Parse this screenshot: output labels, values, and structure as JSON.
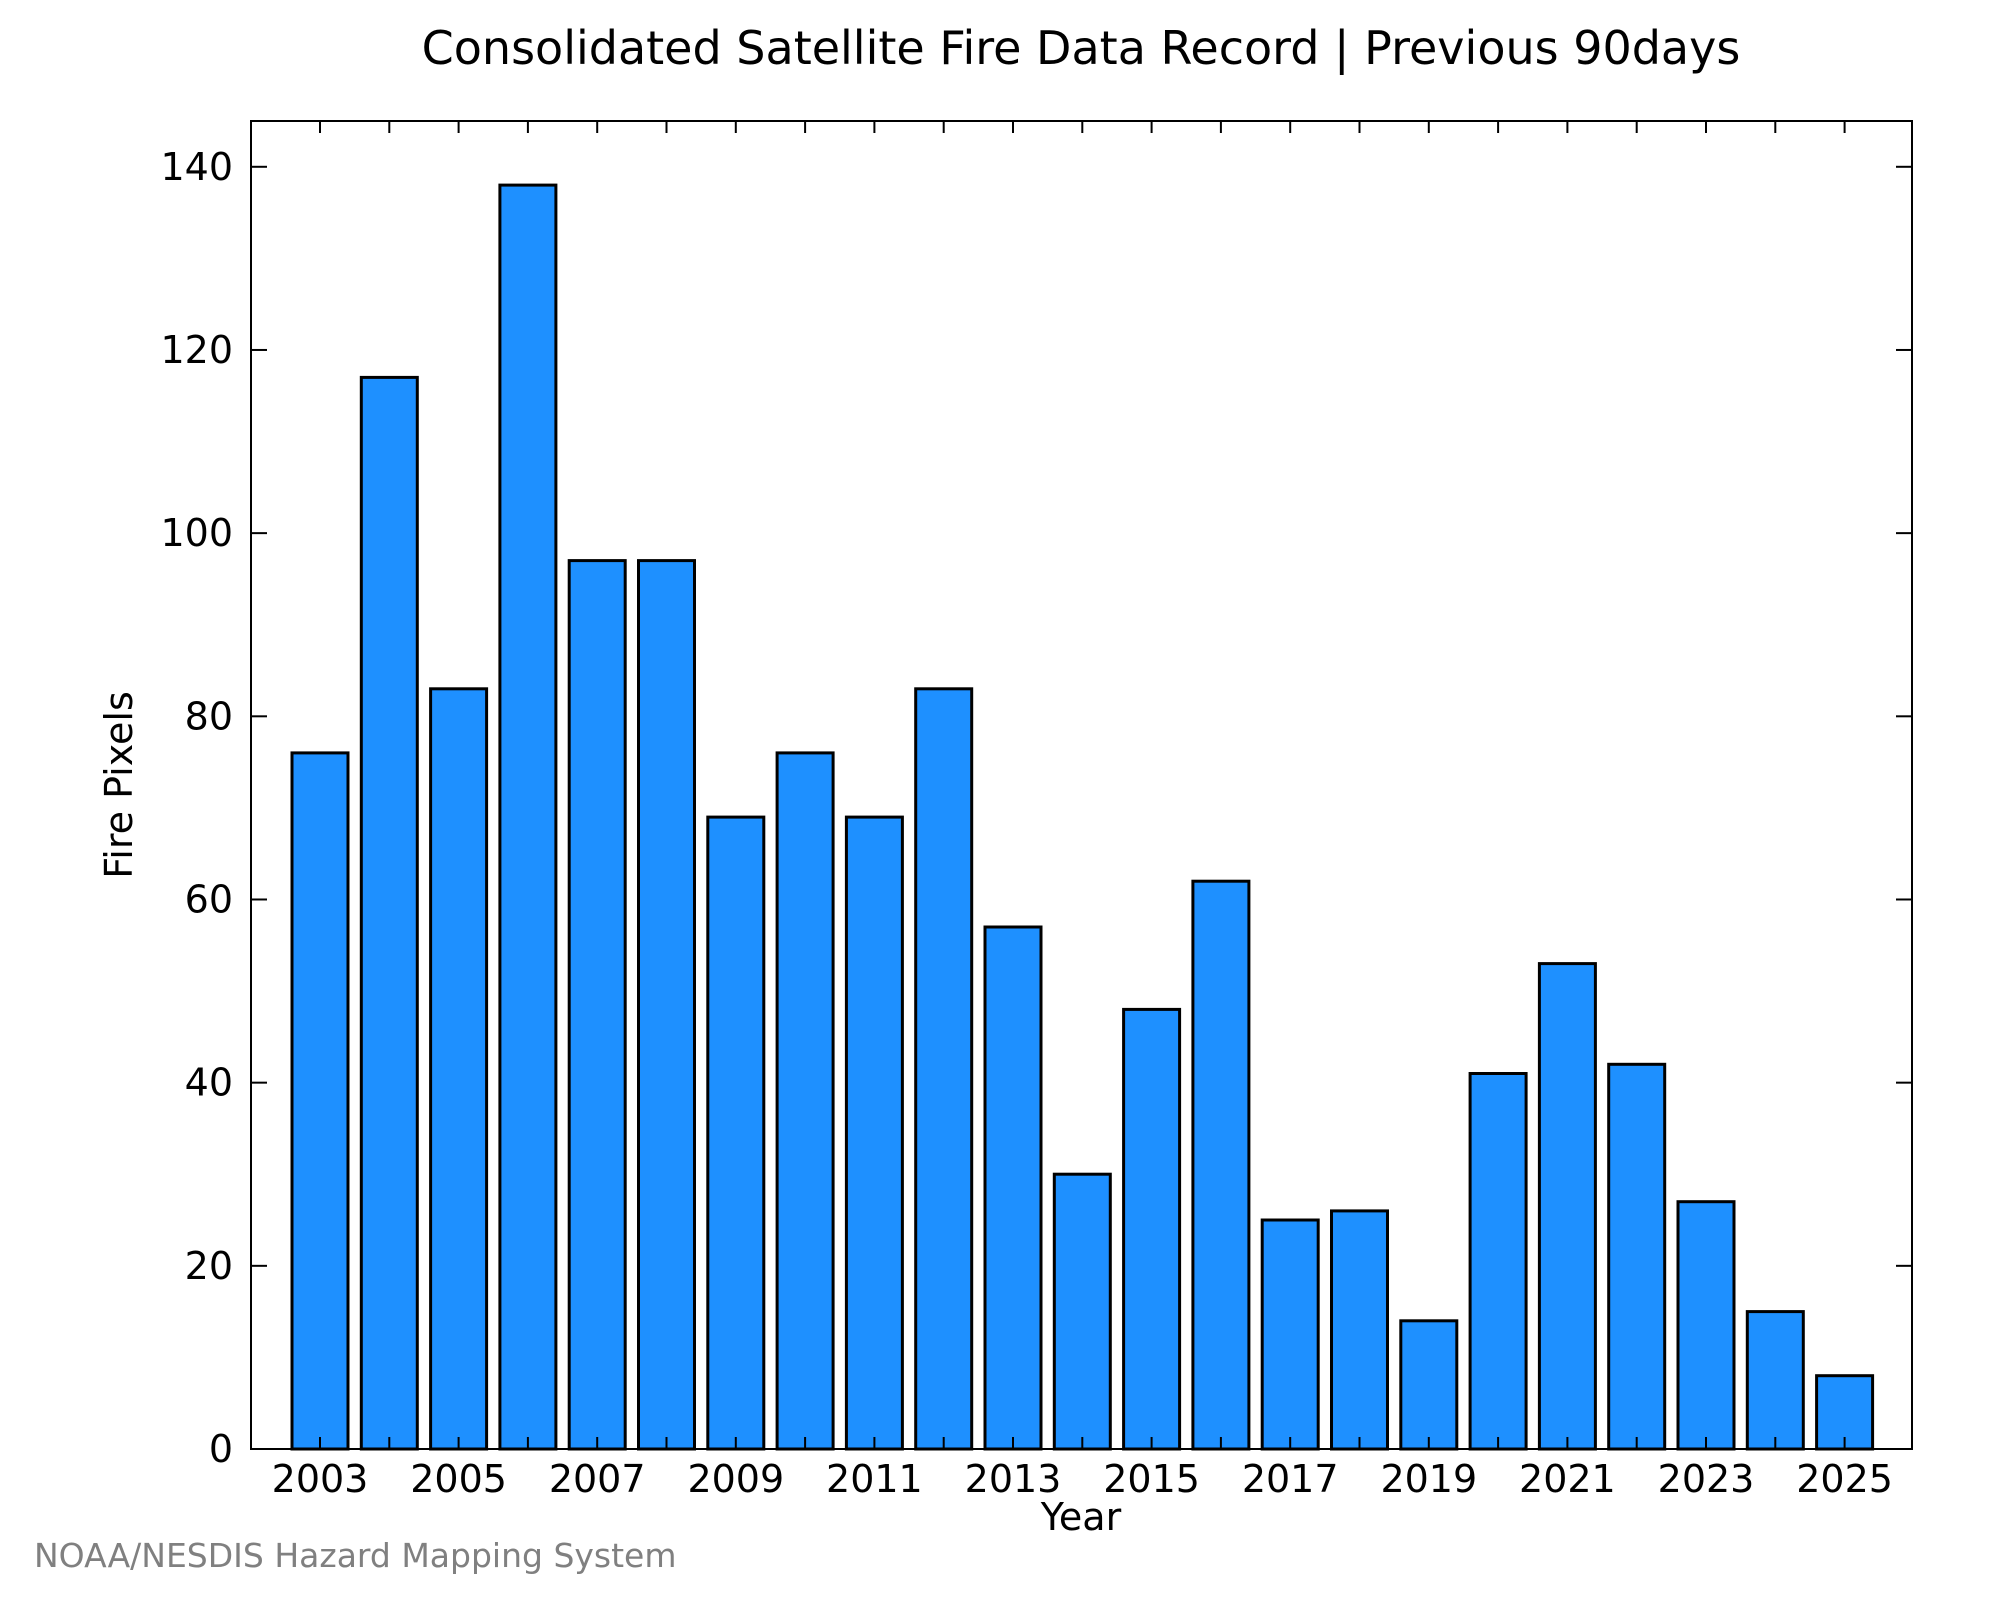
{
  "chart_data": {
    "type": "bar",
    "title": "Consolidated Satellite Fire Data Record | Previous 90days",
    "xlabel": "Year",
    "ylabel": "Fire Pixels",
    "categories": [
      "2003",
      "2004",
      "2005",
      "2006",
      "2007",
      "2008",
      "2009",
      "2010",
      "2011",
      "2012",
      "2013",
      "2014",
      "2015",
      "2016",
      "2017",
      "2018",
      "2019",
      "2020",
      "2021",
      "2022",
      "2023",
      "2024",
      "2025"
    ],
    "values": [
      76,
      117,
      83,
      138,
      97,
      97,
      69,
      76,
      69,
      83,
      57,
      30,
      48,
      62,
      25,
      26,
      14,
      41,
      53,
      42,
      27,
      15,
      8
    ],
    "x_tick_labels": [
      "2003",
      "2005",
      "2007",
      "2009",
      "2011",
      "2013",
      "2015",
      "2017",
      "2019",
      "2021",
      "2023",
      "2025"
    ],
    "y_tick_labels": [
      "0",
      "20",
      "40",
      "60",
      "80",
      "100",
      "120",
      "140"
    ],
    "ylim": [
      0,
      145
    ],
    "grid": false,
    "bar_color": "#1E90FF",
    "bar_edge_color": "#000000"
  },
  "footer": {
    "credit": "NOAA/NESDIS Hazard Mapping System"
  }
}
